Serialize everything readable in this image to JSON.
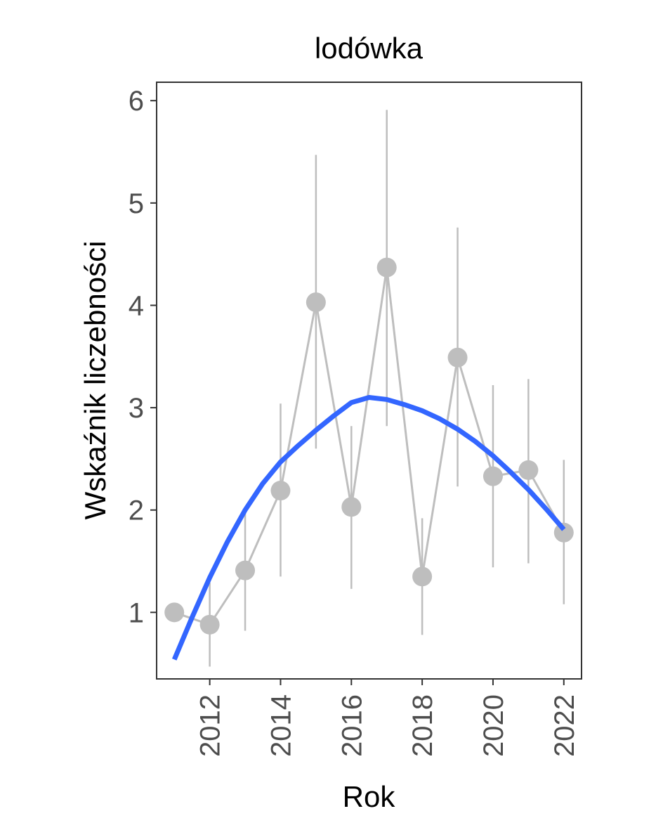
{
  "chart_data": {
    "type": "line",
    "title": "lodówka",
    "xlabel": "Rok",
    "ylabel": "Wskaźnik liczebności",
    "xlim": [
      2010.5,
      2022.5
    ],
    "ylim": [
      0.35,
      6.18
    ],
    "x_ticks": [
      2012,
      2014,
      2016,
      2018,
      2020,
      2022
    ],
    "y_ticks": [
      1,
      2,
      3,
      4,
      5,
      6
    ],
    "grid": false,
    "legend": "none",
    "series": [
      {
        "kind": "points-with-errorbars",
        "color": "#bebebe",
        "x": [
          2011,
          2012,
          2013,
          2014,
          2015,
          2016,
          2017,
          2018,
          2019,
          2020,
          2021,
          2022
        ],
        "y": [
          1.0,
          0.88,
          1.41,
          2.19,
          4.03,
          2.03,
          4.37,
          1.35,
          3.49,
          2.33,
          2.39,
          1.78
        ],
        "lower": [
          null,
          0.47,
          0.82,
          1.35,
          2.6,
          1.23,
          2.82,
          0.78,
          2.23,
          1.44,
          1.48,
          1.08
        ],
        "upper": [
          null,
          1.29,
          2.0,
          3.04,
          5.47,
          2.82,
          5.91,
          1.92,
          4.76,
          3.22,
          3.28,
          2.49
        ]
      },
      {
        "kind": "smooth-trend",
        "color": "#3366ff",
        "x": [
          2011,
          2011.5,
          2012,
          2012.5,
          2013,
          2013.5,
          2014,
          2014.5,
          2015,
          2015.5,
          2016,
          2016.5,
          2017,
          2017.5,
          2018,
          2018.5,
          2019,
          2019.5,
          2020,
          2020.5,
          2021,
          2021.5,
          2022
        ],
        "y": [
          0.54,
          0.95,
          1.34,
          1.69,
          2.0,
          2.26,
          2.47,
          2.63,
          2.78,
          2.92,
          3.05,
          3.1,
          3.08,
          3.03,
          2.97,
          2.89,
          2.79,
          2.67,
          2.53,
          2.37,
          2.2,
          2.01,
          1.81
        ]
      }
    ]
  }
}
